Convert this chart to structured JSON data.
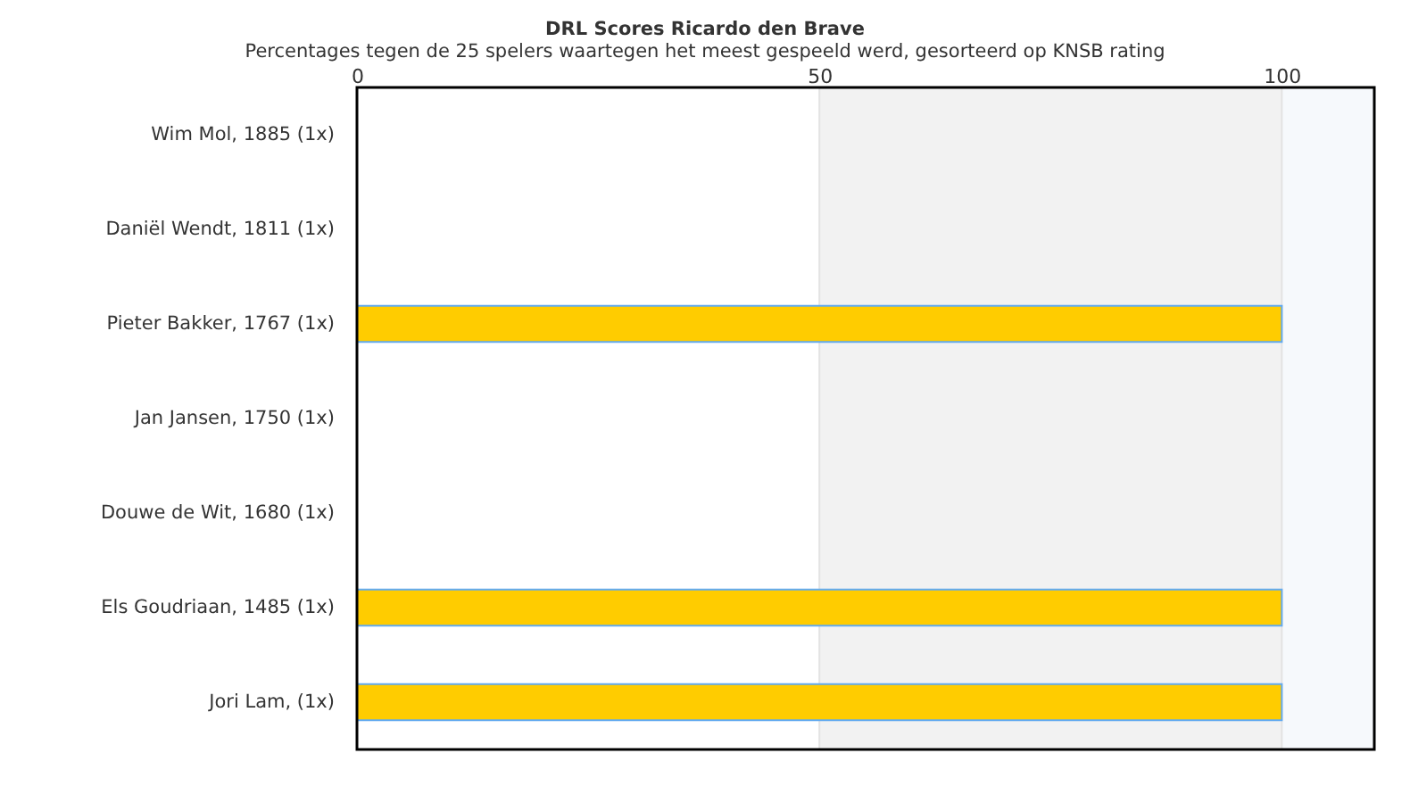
{
  "chart_data": {
    "type": "bar",
    "orientation": "horizontal",
    "title": "DRL Scores Ricardo den Brave",
    "subtitle": "Percentages tegen de 25 spelers waartegen het meest gespeeld werd, gesorteerd op KNSB rating",
    "categories": [
      "Wim Mol, 1885 (1x)",
      "Daniël Wendt, 1811 (1x)",
      "Pieter Bakker, 1767 (1x)",
      "Jan Jansen, 1750 (1x)",
      "Douwe de Wit, 1680 (1x)",
      "Els Goudriaan, 1485 (1x)",
      "Jori Lam,  (1x)"
    ],
    "series": [
      {
        "color": "#ffcc00",
        "values": [
          0,
          0,
          100,
          0,
          0,
          100,
          100
        ]
      }
    ],
    "xlim": [
      0,
      110
    ],
    "xticks": [
      0,
      50,
      100
    ],
    "grid": "x",
    "bands": [
      {
        "axis": "x",
        "from": 50,
        "to": 100,
        "color": "#f2f2f2"
      },
      {
        "axis": "x",
        "from": 100,
        "to": 110,
        "color": "#f6f9fc"
      }
    ]
  }
}
